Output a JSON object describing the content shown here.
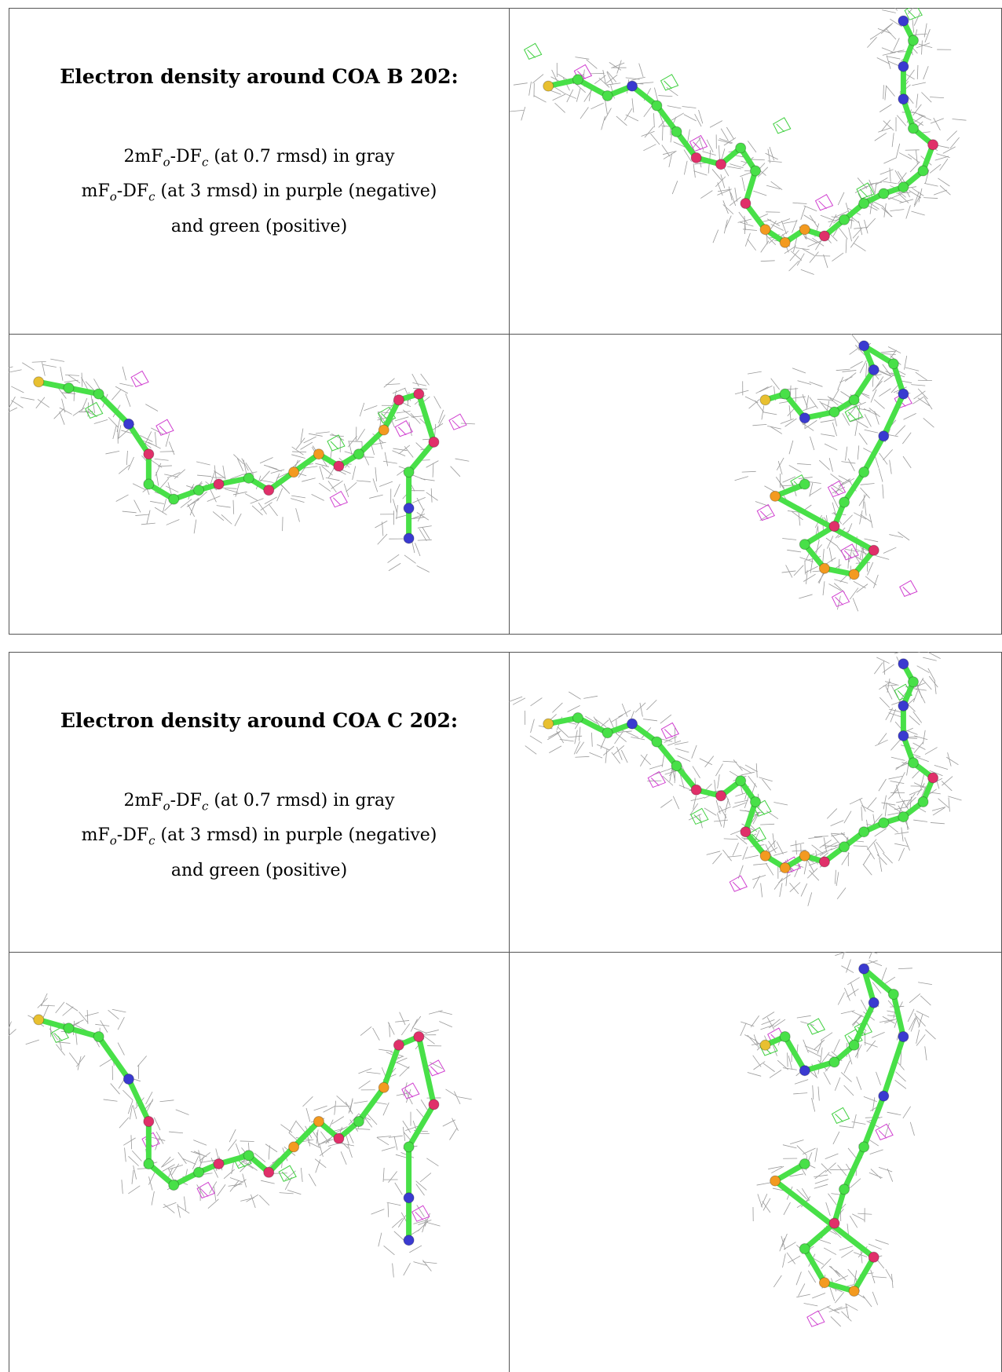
{
  "blocks": [
    {
      "heading": "Electron density around COA B 202:",
      "lines": [
        [
          "2mF",
          "o",
          "-DF",
          "c",
          " (at 0.7 rmsd) in gray"
        ],
        [
          "mF",
          "o",
          "-DF",
          "c",
          " (at 3 rmsd) in purple (negative)"
        ],
        [
          "and green (positive)"
        ]
      ]
    },
    {
      "heading": "Electron density around COA C 202:",
      "lines": [
        [
          "2mF",
          "o",
          "-DF",
          "c",
          " (at 0.7 rmsd) in gray"
        ],
        [
          "mF",
          "o",
          "-DF",
          "c",
          " (at 3 rmsd) in purple (negative)"
        ],
        [
          "and green (positive)"
        ]
      ]
    }
  ]
}
